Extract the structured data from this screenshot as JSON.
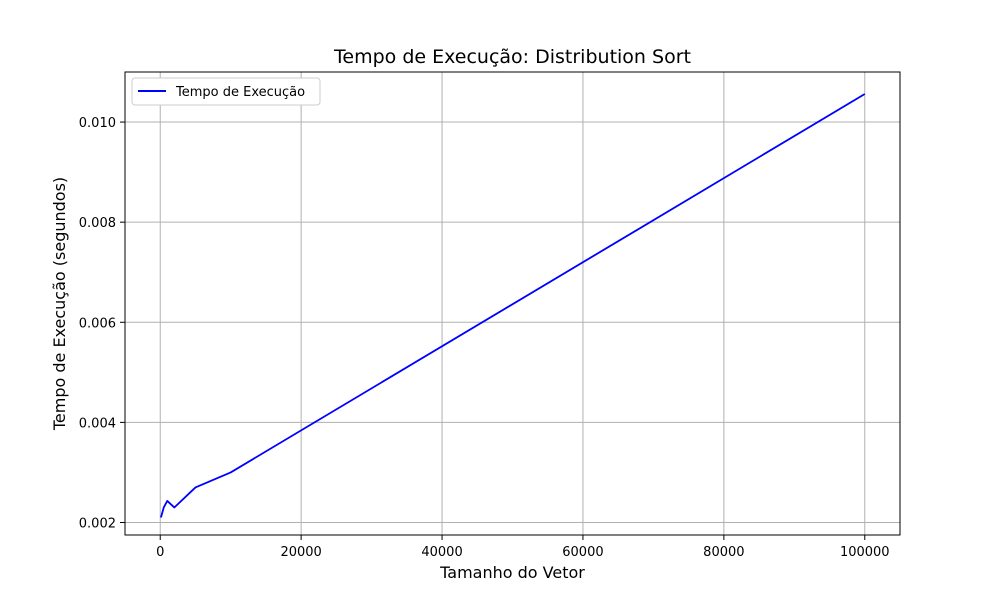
{
  "chart_data": {
    "type": "line",
    "title": "Tempo de Execução: Distribution Sort",
    "xlabel": "Tamanho do Vetor",
    "ylabel": "Tempo de Execução (segundos)",
    "xlim": [
      -5000,
      105000
    ],
    "ylim": [
      0.00175,
      0.011
    ],
    "xticks": [
      0,
      20000,
      40000,
      60000,
      80000,
      100000
    ],
    "xtick_labels": [
      "0",
      "20000",
      "40000",
      "60000",
      "80000",
      "100000"
    ],
    "yticks": [
      0.002,
      0.004,
      0.006,
      0.008,
      0.01
    ],
    "ytick_labels": [
      "0.002",
      "0.004",
      "0.006",
      "0.008",
      "0.010"
    ],
    "grid": true,
    "legend_position": "top-left",
    "series": [
      {
        "name": "Tempo de Execução",
        "color": "#0000ff",
        "x": [
          100,
          500,
          1000,
          2000,
          5000,
          10000,
          100000
        ],
        "y": [
          0.0021,
          0.0023,
          0.00243,
          0.0023,
          0.0027,
          0.003,
          0.01056
        ]
      }
    ]
  }
}
